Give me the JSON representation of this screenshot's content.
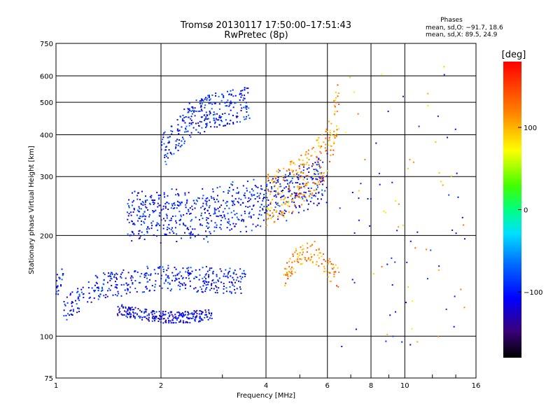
{
  "header": {
    "title_line1": "Tromsø 20130117 17:50:00–17:51:43",
    "title_line2": "RwPretec (8p)",
    "stats_title": "Phases",
    "stats_o": "mean, sd,O: −91.7, 18.6",
    "stats_x": "mean, sd,X:  89.5, 24.9"
  },
  "chart_data": {
    "type": "scatter",
    "title": "Tromsø 20130117 17:50:00–17:51:43",
    "subtitle": "RwPretec (8p)",
    "xlabel": "Frequency [MHz]",
    "ylabel": "Stationary phase Virtual Height [km]",
    "xscale": "log",
    "yscale": "log",
    "xlim": [
      1,
      16
    ],
    "ylim": [
      75,
      750
    ],
    "xticks": [
      1,
      2,
      4,
      6,
      8,
      10,
      16
    ],
    "xtick_labels": [
      "1",
      "2",
      "4",
      "6",
      "8",
      "10",
      "16"
    ],
    "yticks": [
      75,
      100,
      200,
      300,
      400,
      500,
      600,
      750
    ],
    "ytick_labels": [
      "75",
      "100",
      "200",
      "300",
      "400",
      "500",
      "600",
      "750"
    ],
    "grid": true,
    "colorbar": {
      "label": "[deg]",
      "range": [
        -180,
        180
      ],
      "ticks": [
        100,
        0,
        -100
      ],
      "tick_labels": [
        "100",
        "0",
        "−100"
      ],
      "colormap": "rainbow"
    },
    "series": [
      {
        "freq_range_mhz": [
          1.0,
          3.5
        ],
        "height_range_km": [
          115,
          160
        ],
        "phase_deg": -100,
        "description_values": [
          [
            1.05,
            120
          ],
          [
            1.3,
            140
          ],
          [
            1.6,
            145
          ],
          [
            2.0,
            150
          ],
          [
            2.5,
            148
          ],
          [
            3.0,
            147
          ],
          [
            3.5,
            146
          ]
        ]
      },
      {
        "freq_range_mhz": [
          1.5,
          2.8
        ],
        "height_range_km": [
          110,
          125
        ],
        "phase_deg": -110,
        "description_values": [
          [
            1.5,
            120
          ],
          [
            1.8,
            116
          ],
          [
            2.0,
            114
          ],
          [
            2.4,
            114
          ],
          [
            2.8,
            116
          ]
        ]
      },
      {
        "freq_range_mhz": [
          1.6,
          6.0
        ],
        "height_range_km": [
          225,
          300
        ],
        "phase_deg": -100,
        "description_values": [
          [
            1.6,
            235
          ],
          [
            2.0,
            228
          ],
          [
            2.5,
            230
          ],
          [
            3.0,
            236
          ],
          [
            3.5,
            245
          ],
          [
            4.0,
            255
          ],
          [
            5.0,
            275
          ],
          [
            6.0,
            300
          ]
        ]
      },
      {
        "freq_range_mhz": [
          2.0,
          3.6
        ],
        "height_range_km": [
          330,
          500
        ],
        "phase_deg": -95,
        "description_values": [
          [
            2.0,
            350
          ],
          [
            2.4,
            440
          ],
          [
            2.8,
            470
          ],
          [
            3.2,
            485
          ],
          [
            3.6,
            500
          ]
        ]
      },
      {
        "freq_range_mhz": [
          4.0,
          6.5
        ],
        "height_range_km": [
          140,
          650
        ],
        "phase_deg": 110,
        "description_values": [
          [
            4.0,
            255
          ],
          [
            4.5,
            270
          ],
          [
            5.0,
            290
          ],
          [
            5.5,
            320
          ],
          [
            6.0,
            350
          ],
          [
            6.5,
            500
          ]
        ]
      },
      {
        "freq_range_mhz": [
          4.5,
          6.5
        ],
        "height_range_km": [
          140,
          190
        ],
        "phase_deg": 120,
        "description_values": [
          [
            4.5,
            150
          ],
          [
            5.0,
            175
          ],
          [
            5.5,
            180
          ],
          [
            6.0,
            160
          ],
          [
            6.5,
            150
          ]
        ]
      }
    ]
  },
  "colors": {
    "background": "#ffffff",
    "axis": "#000000",
    "grid": "#000000"
  }
}
